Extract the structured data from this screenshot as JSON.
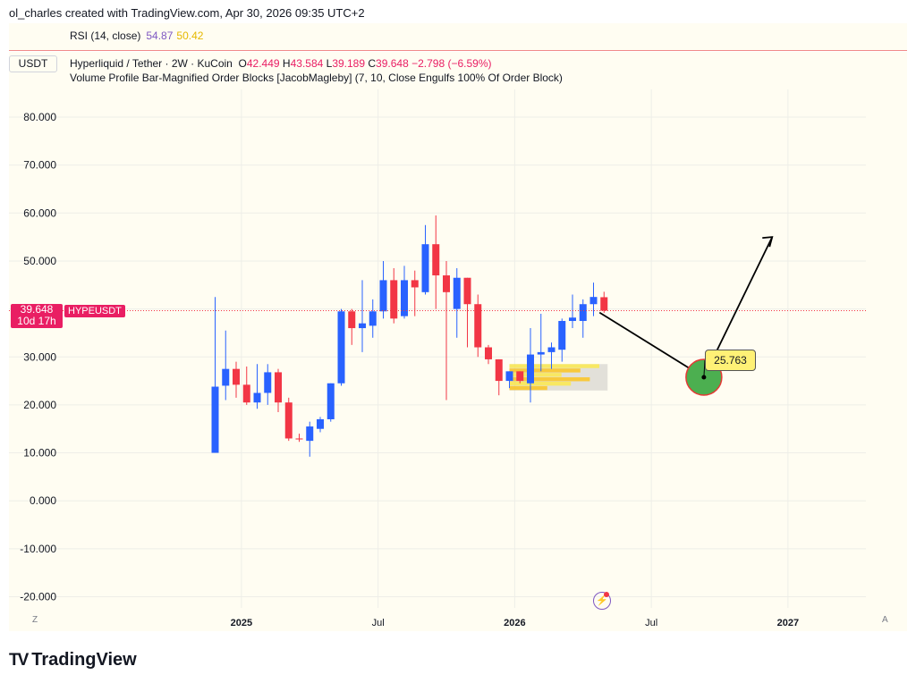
{
  "header": {
    "attribution": "ol_charles created with TradingView.com, Apr 30, 2026 09:35 UTC+2"
  },
  "rsi": {
    "label": "RSI (14, close)",
    "value1": "54.87",
    "value2": "50.42"
  },
  "legend": {
    "currency_button": "USDT",
    "symbol": "Hyperliquid / Tether · 2W · KuCoin",
    "O_label": "O",
    "O": "42.449",
    "H_label": "H",
    "H": "43.584",
    "L_label": "L",
    "L": "39.189",
    "C_label": "C",
    "C": "39.648",
    "change": "−2.798 (−6.59%)",
    "indicator": "Volume Profile Bar-Magnified Order Blocks [JacobMagleby] (7, 10, Close Engulfs 100% Of Order Block)"
  },
  "price_tag": {
    "value": "39.648",
    "countdown": "10d 17h",
    "symbol": "HYPEUSDT"
  },
  "target_label": "25.763",
  "axis_buttons": {
    "left": "Z",
    "right": "A"
  },
  "logo": {
    "mark": "TV",
    "text": "TradingView"
  },
  "colors": {
    "up": "#2962ff",
    "down": "#f23645",
    "price_line": "#f23645",
    "target_circle": "#4caf50"
  },
  "chart_data": {
    "type": "candlestick",
    "title": "Hyperliquid / Tether · 2W · KuCoin",
    "ylim": [
      -22,
      90
    ],
    "y_ticks": [
      "80.000",
      "70.000",
      "60.000",
      "50.000",
      "40.000",
      "30.000",
      "20.000",
      "10.000",
      "0.000",
      "-10.000",
      "-20.000"
    ],
    "y_tick_values": [
      80,
      70,
      60,
      50,
      40,
      30,
      20,
      10,
      0,
      -10,
      -20
    ],
    "x_ticks": [
      "2025",
      "Jul",
      "2026",
      "Jul",
      "2027"
    ],
    "x_tick_index": [
      2.5,
      15.5,
      28.5,
      41.5,
      54.5
    ],
    "x_max_index": 63,
    "grid": true,
    "candles": [
      {
        "o": 10,
        "h": 42.5,
        "l": 10,
        "c": 23.8
      },
      {
        "o": 24,
        "h": 35.5,
        "l": 21,
        "c": 27.5
      },
      {
        "o": 27.5,
        "h": 29,
        "l": 21.5,
        "c": 24.2
      },
      {
        "o": 24.2,
        "h": 28,
        "l": 20,
        "c": 20.5
      },
      {
        "o": 20.5,
        "h": 28.5,
        "l": 19.2,
        "c": 22.5
      },
      {
        "o": 22.5,
        "h": 28.5,
        "l": 20,
        "c": 26.8
      },
      {
        "o": 26.8,
        "h": 27.5,
        "l": 18.5,
        "c": 20.5
      },
      {
        "o": 20.5,
        "h": 21.5,
        "l": 12.5,
        "c": 13
      },
      {
        "o": 13,
        "h": 14,
        "l": 12.3,
        "c": 12.8
      },
      {
        "o": 12.5,
        "h": 16.5,
        "l": 9.2,
        "c": 15.5
      },
      {
        "o": 15,
        "h": 17.5,
        "l": 14.3,
        "c": 17
      },
      {
        "o": 17,
        "h": 24.5,
        "l": 16.5,
        "c": 24.5
      },
      {
        "o": 24.5,
        "h": 40,
        "l": 24,
        "c": 39.5
      },
      {
        "o": 39.5,
        "h": 40,
        "l": 32.5,
        "c": 36
      },
      {
        "o": 36,
        "h": 46,
        "l": 31,
        "c": 37
      },
      {
        "o": 36.5,
        "h": 42,
        "l": 34,
        "c": 39.5
      },
      {
        "o": 39.5,
        "h": 50,
        "l": 38,
        "c": 46
      },
      {
        "o": 46,
        "h": 48.5,
        "l": 37,
        "c": 38
      },
      {
        "o": 38.5,
        "h": 49,
        "l": 38,
        "c": 46
      },
      {
        "o": 46,
        "h": 48,
        "l": 38.5,
        "c": 44.5
      },
      {
        "o": 43.5,
        "h": 57.5,
        "l": 43,
        "c": 53.5
      },
      {
        "o": 53.5,
        "h": 59.5,
        "l": 40,
        "c": 47
      },
      {
        "o": 47,
        "h": 50,
        "l": 21,
        "c": 43.5
      },
      {
        "o": 40,
        "h": 48.5,
        "l": 34,
        "c": 46.5
      },
      {
        "o": 46.5,
        "h": 46.5,
        "l": 32,
        "c": 41
      },
      {
        "o": 41,
        "h": 43,
        "l": 30,
        "c": 32
      },
      {
        "o": 32,
        "h": 32.5,
        "l": 28.5,
        "c": 29.5
      },
      {
        "o": 29.5,
        "h": 29.5,
        "l": 22,
        "c": 25
      },
      {
        "o": 25,
        "h": 27,
        "l": 23.5,
        "c": 27
      },
      {
        "o": 27,
        "h": 27,
        "l": 24.5,
        "c": 25
      },
      {
        "o": 24.5,
        "h": 36,
        "l": 20.5,
        "c": 30.5
      },
      {
        "o": 30.5,
        "h": 39,
        "l": 27,
        "c": 31
      },
      {
        "o": 31,
        "h": 33,
        "l": 27.5,
        "c": 32
      },
      {
        "o": 31.5,
        "h": 38,
        "l": 29,
        "c": 37.5
      },
      {
        "o": 37.5,
        "h": 43,
        "l": 36,
        "c": 38.2
      },
      {
        "o": 37.5,
        "h": 42,
        "l": 34,
        "c": 41
      },
      {
        "o": 41,
        "h": 45.5,
        "l": 38.5,
        "c": 42.5
      },
      {
        "o": 42.449,
        "h": 43.584,
        "l": 39.189,
        "c": 39.648
      }
    ],
    "order_block": {
      "top": 28.5,
      "bottom": 23,
      "start_index": 28,
      "end_index": 37
    },
    "projection": [
      {
        "i": 37,
        "y": 40
      },
      {
        "i": 46.5,
        "y": 25.763
      },
      {
        "i": 53,
        "y": 55
      }
    ],
    "target": {
      "i": 46.5,
      "y": 25.763,
      "label": "25.763"
    },
    "last_price": 39.648
  }
}
